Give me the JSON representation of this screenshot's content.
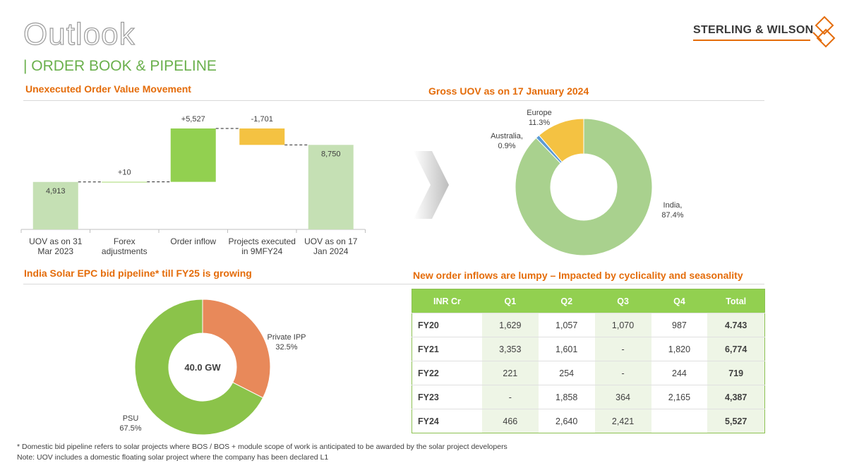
{
  "header": {
    "title": "Outlook",
    "subtitle": "| ORDER BOOK & PIPELINE",
    "logo": "STERLING & WILSON"
  },
  "sections": [
    "Unexecuted Order Value Movement",
    "India Solar EPC bid pipeline* till FY25 is growing",
    "New order inflows are lumpy – Impacted by cyclicality and seasonality"
  ],
  "chart_data": [
    {
      "type": "waterfall",
      "categories": [
        "UOV as on 31 Mar 2023",
        "Forex adjustments",
        "Order inflow",
        "Projects executed in 9MFY24",
        "UOV as on 17 Jan 2024"
      ],
      "values": [
        4913,
        10,
        5527,
        -1701,
        8750
      ],
      "value_labels": [
        "4,913",
        "+10",
        "+5,527",
        "-1,701",
        "8,750"
      ],
      "colors": [
        "#c5e0b4",
        "#92d050",
        "#92d050",
        "#f4c242",
        "#c5e0b4"
      ]
    },
    {
      "type": "donut",
      "title": "Gross UOV as on 17 January 2024",
      "categories": [
        "India,",
        "Australia,",
        "Europe"
      ],
      "values": [
        87.4,
        0.9,
        11.3
      ],
      "value_labels": [
        "87.4%",
        "0.9%",
        "11.3%"
      ],
      "colors": [
        "#a9d18e",
        "#5b9bd5",
        "#f4c242"
      ]
    },
    {
      "type": "donut",
      "center_label": "40.0 GW",
      "categories": [
        "Private IPP",
        "PSU"
      ],
      "values": [
        32.5,
        67.5
      ],
      "value_labels": [
        "32.5%",
        "67.5%"
      ],
      "colors": [
        "#e8895a",
        "#8bc34a"
      ]
    }
  ],
  "table": {
    "header": [
      "INR Cr",
      "Q1",
      "Q2",
      "Q3",
      "Q4",
      "Total"
    ],
    "rows": [
      [
        "FY20",
        "1,629",
        "1,057",
        "1,070",
        "987",
        "4.743"
      ],
      [
        "FY21",
        "3,353",
        "1,601",
        "-",
        "1,820",
        "6,774"
      ],
      [
        "FY22",
        "221",
        "254",
        "-",
        "244",
        "719"
      ],
      [
        "FY23",
        "-",
        "1,858",
        "364",
        "2,165",
        "4,387"
      ],
      [
        "FY24",
        "466",
        "2,640",
        "2,421",
        null,
        "5,527"
      ]
    ]
  },
  "footnotes": [
    "* Domestic bid pipeline refers to solar projects where BOS / BOS + module scope of work is anticipated to be awarded by the solar project developers",
    "Note: UOV includes a domestic floating solar project where the company has been declared L1"
  ]
}
